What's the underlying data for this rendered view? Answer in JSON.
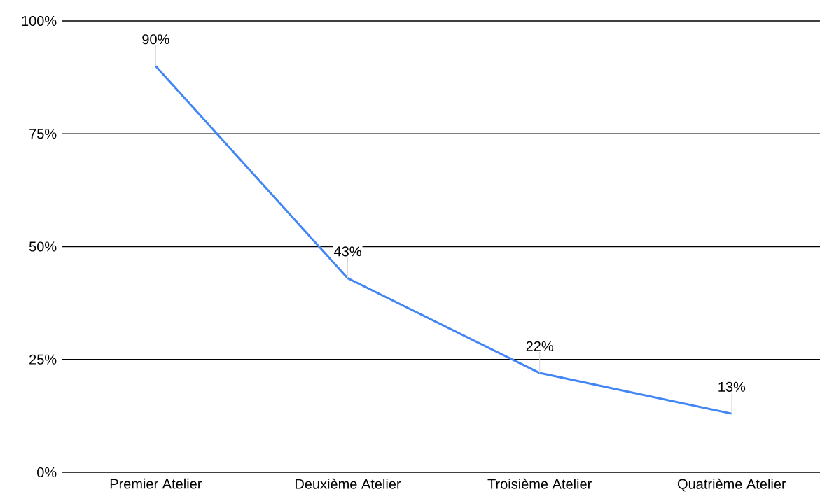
{
  "chart_data": {
    "type": "line",
    "categories": [
      "Premier Atelier",
      "Deuxième Atelier",
      "Troisième Atelier",
      "Quatrième Atelier"
    ],
    "values": [
      90,
      43,
      22,
      13
    ],
    "value_labels": [
      "90%",
      "43%",
      "22%",
      "13%"
    ],
    "color": "#4285f4",
    "ylim": [
      0,
      100
    ],
    "yticks": [
      {
        "value": 0,
        "label": "0%"
      },
      {
        "value": 25,
        "label": "25%"
      },
      {
        "value": 50,
        "label": "50%"
      },
      {
        "value": 75,
        "label": "75%"
      },
      {
        "value": 100,
        "label": "100%"
      }
    ],
    "grid": "y",
    "marker": "none",
    "line_style": "solid"
  }
}
